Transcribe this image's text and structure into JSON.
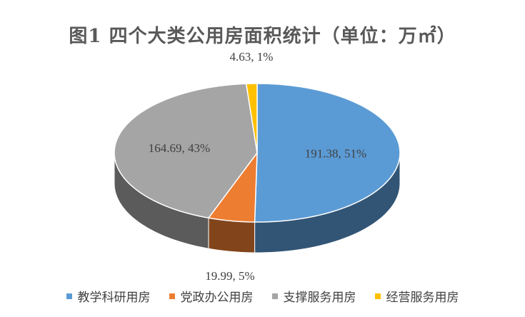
{
  "chart_data": {
    "type": "pie",
    "title": "图1  四个大类公用房面积统计（单位：万㎡）",
    "categories": [
      "教学科研用房",
      "党政办公用房",
      "支撑服务用房",
      "经营服务用房"
    ],
    "values": [
      191.38,
      19.99,
      164.69,
      4.63
    ],
    "percents": [
      "51%",
      "5%",
      "43%",
      "1%"
    ],
    "data_labels": [
      "191.38, 51%",
      "19.99, 5%",
      "164.69, 43%",
      "4.63, 1%"
    ],
    "colors": [
      "#5B9BD5",
      "#ED7D31",
      "#A5A5A5",
      "#FFC000"
    ],
    "legend_position": "bottom",
    "style": "3d"
  }
}
